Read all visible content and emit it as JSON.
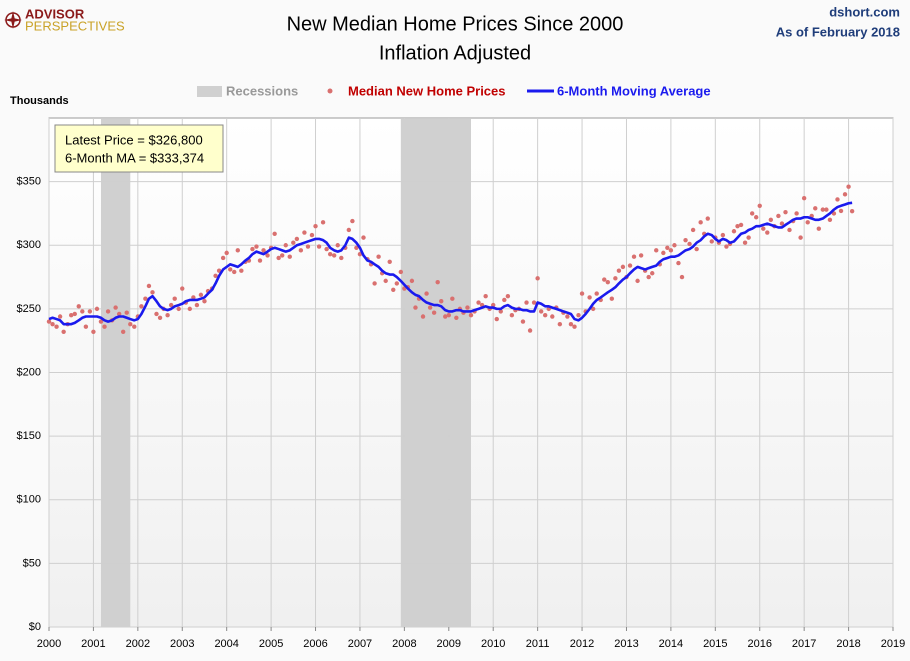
{
  "header": {
    "logo_top": "ADVISOR",
    "logo_bottom": "PERSPECTIVES",
    "site": "dshort.com",
    "date": "As of February 2018"
  },
  "chart_data": {
    "type": "scatter-line",
    "title": "New Median Home Prices Since 2000",
    "subtitle": "Inflation Adjusted",
    "y_label": "Thousands",
    "recessions_label": "Recessions",
    "recessions": [
      {
        "start": 2001.17,
        "end": 2001.83
      },
      {
        "start": 2007.92,
        "end": 2009.5
      }
    ],
    "annotation": [
      "Latest Price = $326,800",
      "6-Month MA = $333,374"
    ],
    "xlim": [
      2000,
      2019
    ],
    "xticks": [
      2000,
      2001,
      2002,
      2003,
      2004,
      2005,
      2006,
      2007,
      2008,
      2009,
      2010,
      2011,
      2012,
      2013,
      2014,
      2015,
      2016,
      2017,
      2018,
      2019
    ],
    "ylim": [
      0,
      400
    ],
    "yticks": [
      {
        "value": 0,
        "label": "$0"
      },
      {
        "value": 50,
        "label": "$50"
      },
      {
        "value": 100,
        "label": "$100"
      },
      {
        "value": 150,
        "label": "$150"
      },
      {
        "value": 200,
        "label": "$200"
      },
      {
        "value": 250,
        "label": "$250"
      },
      {
        "value": 300,
        "label": "$300"
      },
      {
        "value": 350,
        "label": "$350"
      }
    ],
    "grid": true,
    "x": [
      2000,
      2000.08,
      2000.17,
      2000.25,
      2000.33,
      2000.42,
      2000.5,
      2000.58,
      2000.67,
      2000.75,
      2000.83,
      2000.92,
      2001,
      2001.08,
      2001.17,
      2001.25,
      2001.33,
      2001.42,
      2001.5,
      2001.58,
      2001.67,
      2001.75,
      2001.83,
      2001.92,
      2002,
      2002.08,
      2002.17,
      2002.25,
      2002.33,
      2002.42,
      2002.5,
      2002.58,
      2002.67,
      2002.75,
      2002.83,
      2002.92,
      2003,
      2003.08,
      2003.17,
      2003.25,
      2003.33,
      2003.42,
      2003.5,
      2003.58,
      2003.67,
      2003.75,
      2003.83,
      2003.92,
      2004,
      2004.08,
      2004.17,
      2004.25,
      2004.33,
      2004.42,
      2004.5,
      2004.58,
      2004.67,
      2004.75,
      2004.83,
      2004.92,
      2005,
      2005.08,
      2005.17,
      2005.25,
      2005.33,
      2005.42,
      2005.5,
      2005.58,
      2005.67,
      2005.75,
      2005.83,
      2005.92,
      2006,
      2006.08,
      2006.17,
      2006.25,
      2006.33,
      2006.42,
      2006.5,
      2006.58,
      2006.67,
      2006.75,
      2006.83,
      2006.92,
      2007,
      2007.08,
      2007.17,
      2007.25,
      2007.33,
      2007.42,
      2007.5,
      2007.58,
      2007.67,
      2007.75,
      2007.83,
      2007.92,
      2008,
      2008.08,
      2008.17,
      2008.25,
      2008.33,
      2008.42,
      2008.5,
      2008.58,
      2008.67,
      2008.75,
      2008.83,
      2008.92,
      2009,
      2009.08,
      2009.17,
      2009.25,
      2009.33,
      2009.42,
      2009.5,
      2009.58,
      2009.67,
      2009.75,
      2009.83,
      2009.92,
      2010,
      2010.08,
      2010.17,
      2010.25,
      2010.33,
      2010.42,
      2010.5,
      2010.58,
      2010.67,
      2010.75,
      2010.83,
      2010.92,
      2011,
      2011.08,
      2011.17,
      2011.25,
      2011.33,
      2011.42,
      2011.5,
      2011.58,
      2011.67,
      2011.75,
      2011.83,
      2011.92,
      2012,
      2012.08,
      2012.17,
      2012.25,
      2012.33,
      2012.42,
      2012.5,
      2012.58,
      2012.67,
      2012.75,
      2012.83,
      2012.92,
      2013,
      2013.08,
      2013.17,
      2013.25,
      2013.33,
      2013.42,
      2013.5,
      2013.58,
      2013.67,
      2013.75,
      2013.83,
      2013.92,
      2014,
      2014.08,
      2014.17,
      2014.25,
      2014.33,
      2014.42,
      2014.5,
      2014.58,
      2014.67,
      2014.75,
      2014.83,
      2014.92,
      2015,
      2015.08,
      2015.17,
      2015.25,
      2015.33,
      2015.42,
      2015.5,
      2015.58,
      2015.67,
      2015.75,
      2015.83,
      2015.92,
      2016,
      2016.08,
      2016.17,
      2016.25,
      2016.33,
      2016.42,
      2016.5,
      2016.58,
      2016.67,
      2016.75,
      2016.83,
      2016.92,
      2017,
      2017.08,
      2017.17,
      2017.25,
      2017.33,
      2017.42,
      2017.5,
      2017.58,
      2017.67,
      2017.75,
      2017.83,
      2017.92,
      2018,
      2018.08
    ],
    "series": [
      {
        "name": "Median New Home Prices",
        "color": "#d9706f",
        "style": "dots",
        "values": [
          240,
          238,
          236,
          244,
          232,
          238,
          245,
          246,
          252,
          248,
          236,
          248,
          232,
          250,
          240,
          236,
          248,
          241,
          251,
          246,
          232,
          247,
          238,
          236,
          244,
          252,
          258,
          268,
          263,
          246,
          243,
          250,
          245,
          253,
          258,
          250,
          266,
          255,
          250,
          259,
          253,
          261,
          256,
          264,
          266,
          276,
          280,
          290,
          294,
          281,
          279,
          296,
          280,
          287,
          288,
          297,
          299,
          288,
          296,
          292,
          298,
          309,
          290,
          292,
          300,
          291,
          302,
          305,
          296,
          310,
          299,
          308,
          315,
          299,
          318,
          297,
          293,
          292,
          300,
          290,
          298,
          312,
          319,
          298,
          293,
          306,
          289,
          285,
          270,
          291,
          278,
          272,
          287,
          265,
          270,
          279,
          266,
          267,
          272,
          251,
          258,
          244,
          262,
          251,
          247,
          271,
          256,
          244,
          245,
          258,
          243,
          250,
          247,
          251,
          245,
          248,
          255,
          253,
          260,
          250,
          253,
          242,
          248,
          257,
          260,
          245,
          249,
          250,
          240,
          255,
          233,
          255,
          274,
          248,
          245,
          250,
          244,
          251,
          238,
          247,
          244,
          238,
          236,
          245,
          262,
          248,
          259,
          250,
          262,
          257,
          273,
          271,
          258,
          274,
          280,
          283,
          275,
          284,
          291,
          272,
          292,
          280,
          275,
          278,
          296,
          285,
          294,
          298,
          296,
          300,
          286,
          275,
          304,
          301,
          312,
          297,
          318,
          309,
          321,
          303,
          306,
          302,
          308,
          299,
          301,
          311,
          315,
          316,
          302,
          306,
          325,
          322,
          331,
          313,
          310,
          320,
          315,
          323,
          317,
          326,
          312,
          319,
          325,
          306,
          337,
          318,
          323,
          329,
          313,
          328,
          328,
          320,
          325,
          336,
          327,
          340,
          346,
          326.8
        ]
      },
      {
        "name": "6-Month Moving Average",
        "color": "#1a1aee",
        "style": "line",
        "values": [
          242,
          243,
          242,
          241,
          238,
          238,
          238,
          239,
          241,
          243,
          244,
          244,
          244,
          244,
          243,
          241,
          240,
          241,
          243,
          244,
          244,
          243,
          242,
          241,
          242,
          246,
          252,
          258,
          260,
          256,
          252,
          250,
          249,
          250,
          252,
          253,
          254,
          256,
          257,
          257,
          257,
          258,
          259,
          262,
          265,
          270,
          276,
          281,
          283,
          285,
          284,
          283,
          285,
          288,
          290,
          293,
          295,
          294,
          293,
          295,
          297,
          298,
          297,
          296,
          295,
          296,
          298,
          300,
          301,
          302,
          303,
          304,
          305,
          305,
          304,
          302,
          298,
          296,
          295,
          296,
          300,
          306,
          305,
          302,
          298,
          292,
          288,
          287,
          285,
          283,
          280,
          278,
          277,
          277,
          275,
          272,
          269,
          266,
          263,
          261,
          260,
          257,
          255,
          254,
          253,
          253,
          252,
          249,
          248,
          248,
          249,
          249,
          248,
          248,
          248,
          249,
          250,
          251,
          252,
          251,
          251,
          250,
          250,
          252,
          253,
          251,
          250,
          250,
          249,
          249,
          248,
          248,
          255,
          254,
          252,
          252,
          251,
          250,
          249,
          248,
          247,
          246,
          242,
          241,
          243,
          246,
          250,
          254,
          257,
          259,
          261,
          263,
          265,
          267,
          270,
          273,
          275,
          278,
          281,
          283,
          282,
          281,
          282,
          283,
          284,
          287,
          289,
          290,
          291,
          291,
          292,
          294,
          296,
          297,
          299,
          302,
          304,
          307,
          309,
          308,
          305,
          303,
          305,
          304,
          302,
          303,
          306,
          309,
          310,
          312,
          313,
          315,
          315,
          316,
          317,
          316,
          315,
          314,
          314,
          316,
          318,
          320,
          321,
          321,
          322,
          322,
          321,
          320,
          320,
          321,
          323,
          325,
          328,
          330,
          331,
          332,
          333,
          333.374
        ]
      }
    ]
  }
}
